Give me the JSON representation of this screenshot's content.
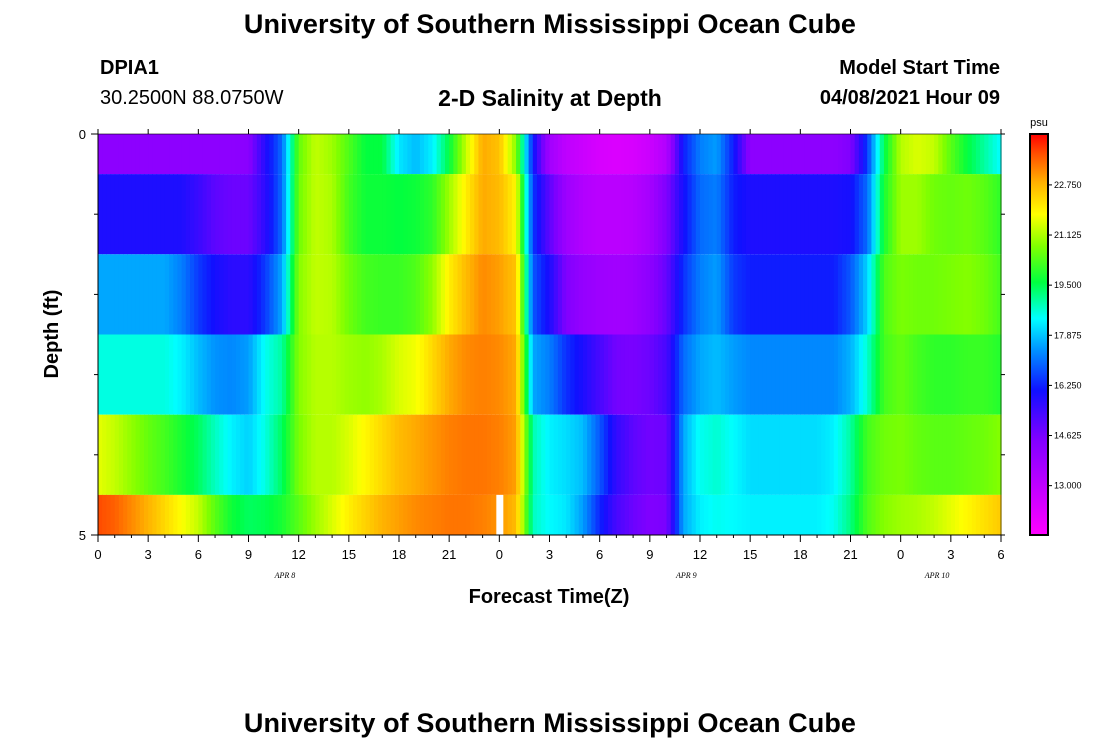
{
  "page": {
    "title_top": "University of Southern Mississippi Ocean Cube",
    "title_bottom": "University of Southern Mississippi Ocean Cube",
    "station_id": "DPIA1",
    "station_coords": "30.2500N  88.0750W",
    "subtitle": "2-D Salinity at Depth",
    "model_start_label": "Model Start Time",
    "model_start_time": "04/08/2021 Hour 09"
  },
  "chart_data": {
    "type": "heatmap",
    "title": "2-D Salinity at Depth",
    "xlabel": "Forecast Time(Z)",
    "ylabel": "Depth (ft)",
    "x_tick_labels": [
      "0",
      "3",
      "6",
      "9",
      "12",
      "15",
      "18",
      "21",
      "0",
      "3",
      "6",
      "9",
      "12",
      "15",
      "18",
      "21",
      "0",
      "3",
      "6"
    ],
    "date_labels": [
      {
        "label": "APR  8",
        "hour_index": 11
      },
      {
        "label": "APR  9",
        "hour_index": 35
      },
      {
        "label": "APR  10",
        "hour_index": 50
      }
    ],
    "y_tick_labels": [
      "0",
      "5"
    ],
    "y_range": [
      0,
      5
    ],
    "x_range_hours": [
      0,
      54
    ],
    "colorbar": {
      "unit": "psu",
      "min": 11.4,
      "max": 24.4,
      "ticks": [
        "22.750",
        "21.125",
        "19.500",
        "17.875",
        "16.250",
        "14.625",
        "13.000"
      ],
      "tick_values": [
        22.75,
        21.125,
        19.5,
        17.875,
        16.25,
        14.625,
        13.0
      ]
    },
    "depth_layers": [
      "0-0.5 ft",
      "0.5-1.5 ft",
      "1.5-2.5 ft",
      "2.5-3.5 ft",
      "3.5-4.5 ft",
      "4.5-5 ft"
    ],
    "time_hours": [
      0,
      1,
      2,
      3,
      4,
      5,
      6,
      7,
      8,
      9,
      10,
      11,
      12,
      13,
      14,
      15,
      16,
      17,
      18,
      19,
      20,
      21,
      22,
      23,
      24,
      25,
      26,
      27,
      28,
      29,
      30,
      31,
      32,
      33,
      34,
      35,
      36,
      37,
      38,
      39,
      40,
      41,
      42,
      43,
      44,
      45,
      46,
      47,
      48,
      49,
      50,
      51,
      52,
      53,
      54
    ],
    "salinity_psu": [
      [
        14.2,
        14.2,
        14.2,
        14.2,
        14.2,
        14.2,
        14.2,
        14.2,
        14.2,
        14.3,
        15.8,
        17.0,
        20.5,
        21.3,
        21.0,
        20.3,
        19.6,
        19.6,
        18.2,
        17.8,
        18.3,
        19.6,
        21.3,
        22.9,
        22.6,
        20.8,
        16.2,
        13.7,
        13.0,
        12.7,
        12.4,
        12.3,
        12.4,
        12.7,
        13.3,
        16.2,
        17.2,
        17.5,
        16.2,
        14.2,
        14.2,
        14.2,
        14.2,
        14.2,
        14.2,
        14.5,
        16.5,
        19.5,
        21.2,
        21.5,
        21.3,
        20.4,
        19.6,
        19.0,
        18.4
      ],
      [
        15.9,
        15.9,
        15.9,
        15.9,
        15.9,
        15.9,
        15.5,
        15.0,
        14.8,
        14.8,
        15.7,
        17.0,
        20.6,
        21.3,
        21.1,
        20.2,
        19.7,
        19.7,
        19.6,
        19.7,
        20.0,
        21.0,
        22.0,
        22.9,
        22.7,
        21.9,
        16.5,
        15.0,
        13.8,
        13.3,
        13.1,
        13.1,
        13.2,
        13.6,
        14.5,
        16.0,
        17.0,
        17.2,
        16.2,
        15.9,
        15.9,
        15.9,
        15.9,
        15.9,
        15.9,
        16.0,
        17.0,
        19.8,
        21.0,
        21.0,
        20.6,
        20.5,
        20.6,
        20.4,
        20.0
      ],
      [
        17.6,
        17.6,
        17.6,
        17.6,
        17.6,
        17.2,
        16.5,
        16.0,
        15.7,
        15.7,
        16.5,
        17.6,
        20.8,
        21.3,
        21.2,
        20.6,
        20.2,
        20.1,
        20.1,
        20.3,
        20.9,
        22.0,
        22.7,
        23.2,
        23.0,
        22.6,
        16.8,
        15.9,
        14.5,
        14.0,
        13.8,
        13.7,
        13.8,
        14.2,
        14.9,
        16.4,
        17.2,
        17.5,
        16.5,
        16.2,
        16.2,
        16.2,
        16.2,
        16.2,
        16.2,
        16.8,
        18.0,
        20.3,
        20.7,
        20.6,
        20.6,
        20.7,
        20.8,
        20.6,
        20.2
      ],
      [
        18.6,
        18.6,
        18.6,
        18.6,
        18.6,
        18.3,
        17.8,
        17.4,
        17.3,
        17.5,
        18.5,
        19.0,
        20.8,
        21.2,
        21.2,
        21.0,
        20.9,
        21.1,
        21.5,
        21.7,
        22.3,
        22.9,
        23.2,
        23.3,
        23.2,
        22.9,
        17.6,
        17.2,
        16.4,
        15.9,
        15.3,
        14.7,
        14.6,
        14.8,
        15.3,
        17.0,
        17.6,
        17.8,
        17.5,
        17.3,
        17.3,
        17.3,
        17.3,
        17.3,
        17.3,
        17.7,
        18.7,
        20.2,
        20.5,
        20.2,
        20.0,
        20.0,
        20.1,
        20.1,
        19.9
      ],
      [
        21.6,
        21.3,
        20.9,
        20.5,
        20.2,
        19.8,
        19.4,
        18.8,
        18.3,
        18.0,
        18.6,
        19.4,
        20.7,
        21.2,
        21.2,
        21.5,
        21.9,
        22.3,
        22.7,
        22.9,
        23.1,
        23.3,
        23.4,
        23.4,
        23.3,
        23.0,
        18.9,
        18.3,
        18.1,
        17.8,
        16.8,
        15.6,
        15.0,
        14.7,
        14.8,
        17.6,
        18.5,
        18.7,
        18.4,
        18.1,
        18.1,
        18.1,
        18.1,
        18.1,
        18.3,
        19.0,
        20.2,
        20.6,
        20.7,
        20.5,
        20.4,
        20.4,
        20.5,
        20.6,
        20.8
      ],
      [
        23.8,
        23.6,
        23.2,
        22.8,
        22.3,
        21.8,
        21.3,
        20.4,
        19.7,
        19.4,
        19.5,
        19.8,
        20.4,
        21.0,
        21.5,
        22.0,
        22.4,
        22.8,
        23.0,
        23.2,
        23.3,
        23.4,
        23.4,
        23.3,
        23.1,
        22.7,
        18.8,
        18.4,
        18.2,
        17.5,
        16.3,
        15.3,
        14.8,
        14.5,
        14.6,
        17.6,
        18.3,
        18.5,
        18.4,
        18.3,
        18.3,
        18.3,
        18.3,
        18.3,
        18.5,
        19.2,
        20.3,
        20.8,
        21.0,
        21.1,
        21.3,
        21.6,
        21.9,
        22.2,
        22.5
      ]
    ]
  }
}
